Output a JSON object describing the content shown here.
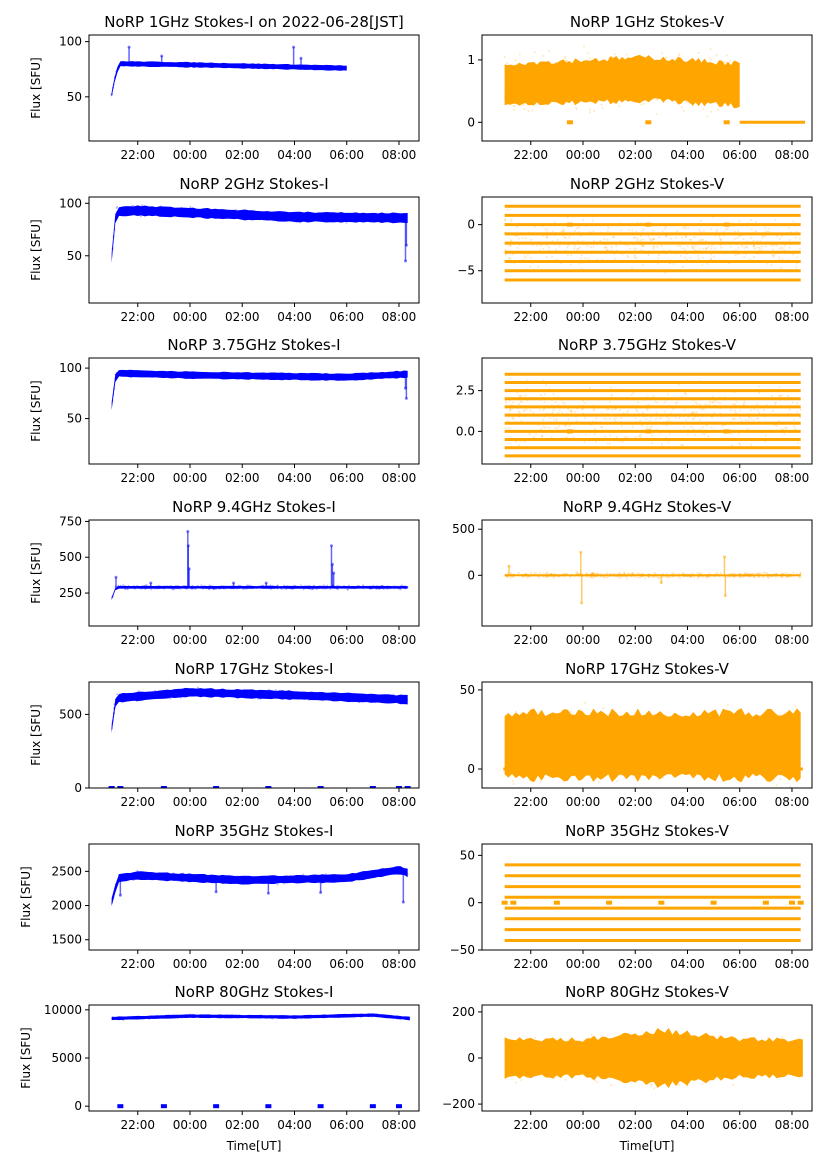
{
  "chart_data": [
    {
      "type": "scatter",
      "title": "NoRP 1GHz Stokes-I on 2022-06-28[JST]",
      "ylabel": "Flux [SFU]",
      "color": "#0000ff",
      "xlim": [
        "20:08",
        "08:46"
      ],
      "ylim": [
        10,
        106
      ],
      "yticks": [
        50,
        100
      ],
      "yticklabels": [
        "50",
        "100"
      ],
      "range": [
        "21:00",
        "06:00"
      ],
      "median": [
        [
          "21:00",
          52
        ],
        [
          "21:10",
          72
        ],
        [
          "21:20",
          80
        ],
        [
          "00:00",
          79
        ],
        [
          "04:00",
          77
        ],
        [
          "06:00",
          76
        ]
      ],
      "spread": 2,
      "scatter": 1,
      "spikes": [
        [
          "21:40",
          95
        ],
        [
          "22:55",
          87
        ],
        [
          "03:58",
          95
        ],
        [
          "04:15",
          85
        ]
      ]
    },
    {
      "type": "scatter",
      "title": "NoRP 1GHz Stokes-V",
      "ylabel": "",
      "color": "#ffa500",
      "xlim": [
        "20:08",
        "08:46"
      ],
      "ylim": [
        -0.3,
        1.4
      ],
      "yticks": [
        0,
        1
      ],
      "yticklabels": [
        "0",
        "1"
      ],
      "range": [
        "21:00",
        "06:00"
      ],
      "median": [
        [
          "21:00",
          0.6
        ],
        [
          "02:30",
          0.7
        ],
        [
          "06:00",
          0.6
        ]
      ],
      "spread": 0.3,
      "scatter": 0.65,
      "segments": [
        [
          [
            "06:00",
            "08:30"
          ],
          0
        ]
      ],
      "zero_dots": [
        "23:30",
        "02:30",
        "05:30"
      ]
    },
    {
      "type": "scatter",
      "title": "NoRP 2GHz Stokes-I",
      "ylabel": "Flux [SFU]",
      "color": "#0000ff",
      "xlim": [
        "20:08",
        "08:46"
      ],
      "ylim": [
        5,
        106
      ],
      "yticks": [
        50,
        100
      ],
      "yticklabels": [
        "50",
        "100"
      ],
      "range": [
        "21:00",
        "08:20"
      ],
      "median": [
        [
          "21:00",
          48
        ],
        [
          "21:10",
          92
        ],
        [
          "22:00",
          93
        ],
        [
          "00:00",
          91
        ],
        [
          "04:00",
          87
        ],
        [
          "08:20",
          86
        ]
      ],
      "spread": 4,
      "scatter": 6,
      "spikes": [
        [
          "08:15",
          45
        ],
        [
          "08:17",
          60
        ]
      ]
    },
    {
      "type": "scatter",
      "title": "NoRP 2GHz Stokes-V",
      "ylabel": "",
      "color": "#ffa500",
      "xlim": [
        "20:08",
        "08:46"
      ],
      "ylim": [
        -8.5,
        3
      ],
      "yticks": [
        -5,
        0
      ],
      "yticklabels": [
        "−5",
        "0"
      ],
      "range": [
        "21:00",
        "08:20"
      ],
      "stripes": [
        2,
        1,
        0,
        -1,
        -2,
        -3,
        -4,
        -5,
        -6
      ],
      "scatter": 4,
      "median": [
        [
          "21:00",
          -2
        ],
        [
          "08:20",
          -2
        ]
      ],
      "zero_dots": [
        "23:30",
        "02:30",
        "05:30"
      ]
    },
    {
      "type": "scatter",
      "title": "NoRP 3.75GHz Stokes-I",
      "ylabel": "Flux [SFU]",
      "color": "#0000ff",
      "xlim": [
        "20:08",
        "08:46"
      ],
      "ylim": [
        5,
        110
      ],
      "yticks": [
        50,
        100
      ],
      "yticklabels": [
        "50",
        "100"
      ],
      "range": [
        "21:00",
        "08:20"
      ],
      "median": [
        [
          "21:00",
          62
        ],
        [
          "21:10",
          95
        ],
        [
          "00:00",
          93
        ],
        [
          "06:00",
          91
        ],
        [
          "08:20",
          94
        ]
      ],
      "spread": 3,
      "scatter": 3,
      "spikes": [
        [
          "08:15",
          80
        ],
        [
          "08:17",
          70
        ]
      ]
    },
    {
      "type": "scatter",
      "title": "NoRP 3.75GHz Stokes-V",
      "ylabel": "",
      "color": "#ffa500",
      "xlim": [
        "20:08",
        "08:46"
      ],
      "ylim": [
        -2,
        4.5
      ],
      "yticks": [
        0,
        2.5
      ],
      "yticklabels": [
        "0.0",
        "2.5"
      ],
      "range": [
        "21:00",
        "08:20"
      ],
      "stripes": [
        3.5,
        3,
        2.5,
        2,
        1.5,
        1,
        0.5,
        0,
        -0.5,
        -1,
        -1.5
      ],
      "scatter": 2.6,
      "median": [
        [
          "21:00",
          1
        ],
        [
          "08:20",
          1
        ]
      ],
      "zero_dots": [
        "23:30",
        "02:30",
        "05:30"
      ]
    },
    {
      "type": "scatter",
      "title": "NoRP 9.4GHz Stokes-I",
      "ylabel": "Flux [SFU]",
      "color": "#0000ff",
      "xlim": [
        "20:08",
        "08:46"
      ],
      "ylim": [
        20,
        760
      ],
      "yticks": [
        250,
        500,
        750
      ],
      "yticklabels": [
        "250",
        "500",
        "750"
      ],
      "range": [
        "21:00",
        "08:20"
      ],
      "median": [
        [
          "21:00",
          210
        ],
        [
          "21:10",
          290
        ],
        [
          "08:20",
          290
        ]
      ],
      "spread": 8,
      "scatter": 20,
      "spikes": [
        [
          "21:10",
          360
        ],
        [
          "23:55",
          680
        ],
        [
          "23:56",
          580
        ],
        [
          "23:58",
          420
        ],
        [
          "05:25",
          580
        ],
        [
          "05:27",
          450
        ],
        [
          "05:30",
          390
        ],
        [
          "22:30",
          320
        ],
        [
          "01:40",
          320
        ],
        [
          "02:55",
          320
        ]
      ]
    },
    {
      "type": "scatter",
      "title": "NoRP 9.4GHz Stokes-V",
      "ylabel": "",
      "color": "#ffa500",
      "xlim": [
        "20:08",
        "08:46"
      ],
      "ylim": [
        -550,
        600
      ],
      "yticks": [
        0,
        500
      ],
      "yticklabels": [
        "0",
        "500"
      ],
      "range": [
        "21:00",
        "08:20"
      ],
      "median": [
        [
          "21:00",
          0
        ],
        [
          "08:20",
          0
        ]
      ],
      "spread": 10,
      "scatter": 40,
      "spikes": [
        [
          "23:55",
          250
        ],
        [
          "23:57",
          -300
        ],
        [
          "05:25",
          200
        ],
        [
          "05:27",
          -220
        ],
        [
          "21:10",
          100
        ],
        [
          "03:00",
          -80
        ]
      ]
    },
    {
      "type": "scatter",
      "title": "NoRP 17GHz Stokes-I",
      "ylabel": "Flux [SFU]",
      "color": "#0000ff",
      "xlim": [
        "20:08",
        "08:46"
      ],
      "ylim": [
        0,
        720
      ],
      "yticks": [
        0,
        500
      ],
      "yticklabels": [
        "0",
        "500"
      ],
      "range": [
        "21:00",
        "08:20"
      ],
      "median": [
        [
          "21:00",
          400
        ],
        [
          "21:10",
          610
        ],
        [
          "00:00",
          650
        ],
        [
          "04:00",
          630
        ],
        [
          "08:20",
          600
        ]
      ],
      "spread": 25,
      "scatter": 40,
      "zero_dots": [
        "21:00",
        "21:20",
        "23:00",
        "01:00",
        "03:00",
        "05:00",
        "07:00",
        "08:00",
        "08:20"
      ]
    },
    {
      "type": "scatter",
      "title": "NoRP 17GHz Stokes-V",
      "ylabel": "",
      "color": "#ffa500",
      "xlim": [
        "20:08",
        "08:46"
      ],
      "ylim": [
        -12,
        55
      ],
      "yticks": [
        0,
        50
      ],
      "yticklabels": [
        "0",
        "50"
      ],
      "range": [
        "21:00",
        "08:20"
      ],
      "median": [
        [
          "21:00",
          15
        ],
        [
          "08:20",
          15
        ]
      ],
      "spread": 18,
      "scatter": 30,
      "segments": [
        [
          [
            "20:57",
            "21:02"
          ],
          0
        ],
        [
          [
            "08:18",
            "08:25"
          ],
          0
        ]
      ]
    },
    {
      "type": "scatter",
      "title": "NoRP 35GHz Stokes-I",
      "ylabel": "Flux [SFU]",
      "color": "#0000ff",
      "xlim": [
        "20:08",
        "08:46"
      ],
      "ylim": [
        1350,
        2900
      ],
      "yticks": [
        1500,
        2000,
        2500
      ],
      "yticklabels": [
        "1500",
        "2000",
        "2500"
      ],
      "range": [
        "21:00",
        "08:20"
      ],
      "median": [
        [
          "21:00",
          2050
        ],
        [
          "21:15",
          2400
        ],
        [
          "22:00",
          2440
        ],
        [
          "02:00",
          2370
        ],
        [
          "06:00",
          2400
        ],
        [
          "08:00",
          2520
        ],
        [
          "08:20",
          2480
        ]
      ],
      "spread": 50,
      "scatter": 80,
      "spikes": [
        [
          "21:20",
          2150
        ],
        [
          "01:00",
          2200
        ],
        [
          "03:00",
          2180
        ],
        [
          "05:00",
          2190
        ],
        [
          "08:10",
          2050
        ]
      ]
    },
    {
      "type": "scatter",
      "title": "NoRP 35GHz Stokes-V",
      "ylabel": "",
      "color": "#ffa500",
      "xlim": [
        "20:08",
        "08:46"
      ],
      "ylim": [
        -50,
        62
      ],
      "yticks": [
        -50,
        0,
        50
      ],
      "yticklabels": [
        "−50",
        "0",
        "50"
      ],
      "range": [
        "21:00",
        "08:20"
      ],
      "stripes": [
        40,
        28.5,
        17,
        5.7,
        -5.7,
        -17,
        -28.5,
        -40
      ],
      "scatter": 0,
      "median": [
        [
          "21:00",
          0
        ],
        [
          "08:20",
          0
        ]
      ],
      "zero_dots": [
        "21:00",
        "21:20",
        "23:00",
        "01:00",
        "03:00",
        "05:00",
        "07:00",
        "08:00",
        "08:20"
      ]
    },
    {
      "type": "scatter",
      "title": "NoRP 80GHz Stokes-I",
      "ylabel": "Flux [SFU]",
      "color": "#0000ff",
      "xlim": [
        "20:08",
        "08:46"
      ],
      "ylim": [
        -500,
        10500
      ],
      "yticks": [
        0,
        5000,
        10000
      ],
      "yticklabels": [
        "0",
        "5000",
        "10000"
      ],
      "range": [
        "21:00",
        "08:25"
      ],
      "median": [
        [
          "21:00",
          9100
        ],
        [
          "00:00",
          9350
        ],
        [
          "04:00",
          9250
        ],
        [
          "07:00",
          9450
        ],
        [
          "08:25",
          9100
        ]
      ],
      "spread": 150,
      "scatter": 200,
      "zero_dots": [
        "21:20",
        "23:00",
        "01:00",
        "03:00",
        "05:00",
        "07:00",
        "08:00"
      ]
    },
    {
      "type": "scatter",
      "title": "NoRP 80GHz Stokes-V",
      "ylabel": "",
      "color": "#ffa500",
      "xlim": [
        "20:08",
        "08:46"
      ],
      "ylim": [
        -230,
        230
      ],
      "yticks": [
        -200,
        0,
        200
      ],
      "yticklabels": [
        "−200",
        "0",
        "200"
      ],
      "range": [
        "21:00",
        "08:25"
      ],
      "median": [
        [
          "21:00",
          0
        ],
        [
          "08:25",
          0
        ]
      ],
      "spread": 70,
      "scatter": 120,
      "spreadBoost": [
        [
          "03:00",
          1.5
        ]
      ]
    }
  ],
  "xticklabels": [
    "22:00",
    "00:00",
    "02:00",
    "04:00",
    "06:00",
    "08:00"
  ],
  "xticks": [
    "22:00",
    "00:00",
    "02:00",
    "04:00",
    "06:00",
    "08:00"
  ],
  "xlabel": "Time[UT]"
}
